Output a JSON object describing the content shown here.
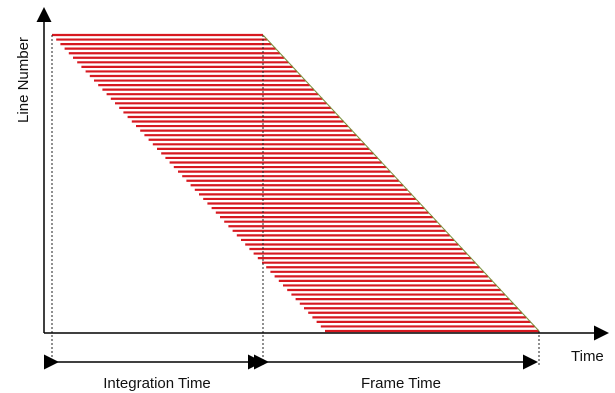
{
  "diagram": {
    "y_axis_label": "Line Number",
    "x_axis_label": "Time",
    "integration_time_label": "Integration Time",
    "frame_time_label": "Frame Time",
    "colors": {
      "line_stripes": "#d71920",
      "background": "#ffffff",
      "axis": "#000000",
      "dashed_guides": "#222222",
      "diagonal_edge": "#7a8f3a"
    },
    "stripe_count": 66
  }
}
